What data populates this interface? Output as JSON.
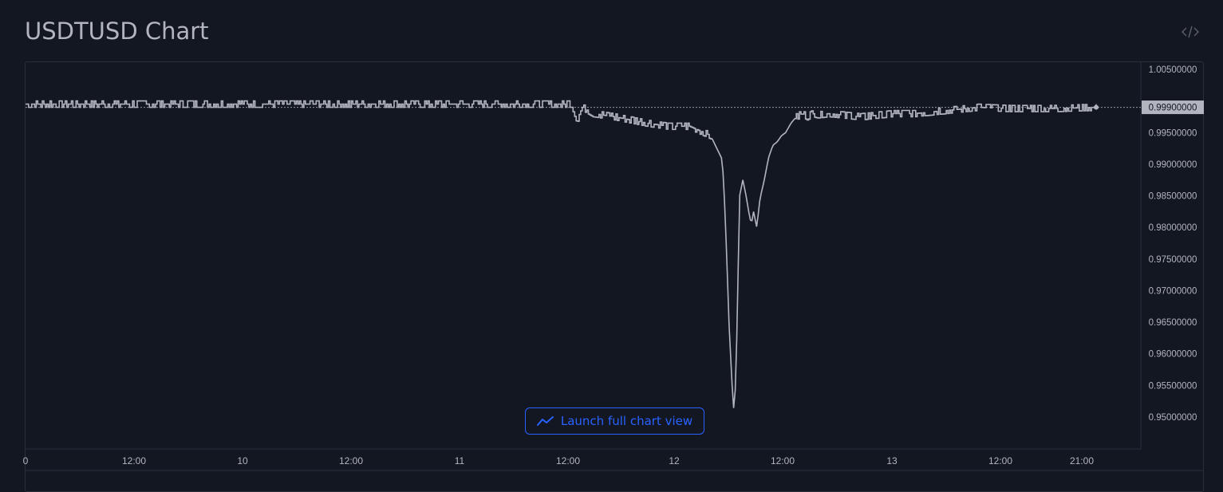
{
  "page": {
    "title": "USDTUSD Chart"
  },
  "icons": {
    "embed": "code-embed-icon",
    "launch": "chart-trend-icon"
  },
  "colors": {
    "background": "#131722",
    "line": "#b2b5be",
    "accent": "#2962ff",
    "last_price_bg": "#b2b5be"
  },
  "launch_button": {
    "label": "Launch full chart view"
  },
  "chart_data": {
    "type": "line",
    "title": "",
    "ylim": [
      0.948,
      1.0055
    ],
    "y_ticks": [
      "1.00500000",
      "0.99500000",
      "0.99000000",
      "0.98500000",
      "0.98000000",
      "0.97500000",
      "0.97000000",
      "0.96500000",
      "0.96000000",
      "0.95500000",
      "0.95000000"
    ],
    "y_tick_values": [
      1.005,
      0.995,
      0.99,
      0.985,
      0.98,
      0.975,
      0.97,
      0.965,
      0.96,
      0.955,
      0.95
    ],
    "x_ticks": [
      "0",
      "12:00",
      "10",
      "12:00",
      "11",
      "12:00",
      "12",
      "12:00",
      "13",
      "12:00",
      "21:00"
    ],
    "last_price": "0.99900000",
    "last_price_value": 0.999,
    "grid": false,
    "series": [
      {
        "x": [
          0,
          0.12,
          0.25,
          0.35,
          0.45,
          0.5,
          0.51,
          0.515,
          0.52,
          0.525,
          0.53,
          0.55,
          0.58,
          0.6,
          0.62,
          0.64,
          0.65,
          0.652,
          0.655,
          0.657,
          0.66,
          0.662,
          0.664,
          0.667,
          0.67,
          0.673,
          0.676,
          0.678,
          0.68,
          0.683,
          0.686,
          0.69,
          0.694,
          0.698,
          0.702,
          0.706,
          0.71,
          0.715,
          0.72,
          0.725,
          0.73,
          0.735,
          0.74,
          0.75,
          0.78,
          0.81,
          0.83,
          0.86,
          0.89,
          0.92,
          0.96,
          1.0
        ],
        "values": [
          0.9995,
          0.9995,
          0.9995,
          0.9995,
          0.9995,
          0.9995,
          0.9995,
          0.997,
          0.999,
          0.9985,
          0.998,
          0.9975,
          0.9965,
          0.996,
          0.996,
          0.9945,
          0.991,
          0.988,
          0.975,
          0.965,
          0.955,
          0.95,
          0.96,
          0.985,
          0.9875,
          0.985,
          0.982,
          0.9805,
          0.9825,
          0.98,
          0.9845,
          0.9875,
          0.991,
          0.993,
          0.9935,
          0.9945,
          0.995,
          0.9965,
          0.9975,
          0.998,
          0.9975,
          0.998,
          0.9978,
          0.998,
          0.9975,
          0.998,
          0.998,
          0.9985,
          0.999,
          0.9988,
          0.9988,
          0.999
        ]
      }
    ]
  }
}
